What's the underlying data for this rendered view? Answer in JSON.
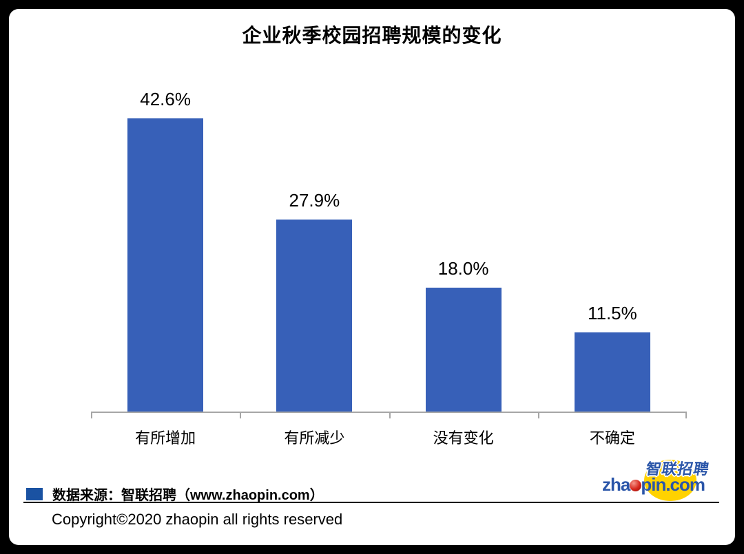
{
  "chart_data": {
    "type": "bar",
    "title": "企业秋季校园招聘规模的变化",
    "categories": [
      "有所增加",
      "有所减少",
      "没有变化",
      "不确定"
    ],
    "values": [
      42.6,
      27.9,
      18.0,
      11.5
    ],
    "value_labels": [
      "42.6%",
      "27.9%",
      "18.0%",
      "11.5%"
    ],
    "xlabel": "",
    "ylabel": "",
    "ylim": [
      0,
      47.3
    ],
    "grid": false,
    "legend_position": "none",
    "bar_color": "#3760B8",
    "axis_color": "#A6A6A6",
    "label_color": "#000000"
  },
  "legend": {
    "swatch_color": "#1A52A2",
    "source_label": "数据来源：智联招聘（www.zhaopin.com）"
  },
  "footer": {
    "copyright": "Copyright©2020 zhaopin all rights reserved"
  },
  "logo": {
    "cjk_text": "智联招聘",
    "domain_before_ball": "zha",
    "domain_after_ball": "pin.com",
    "blue": "#2B56A9",
    "yellow": "#FFD200",
    "red": "#C42A21"
  }
}
